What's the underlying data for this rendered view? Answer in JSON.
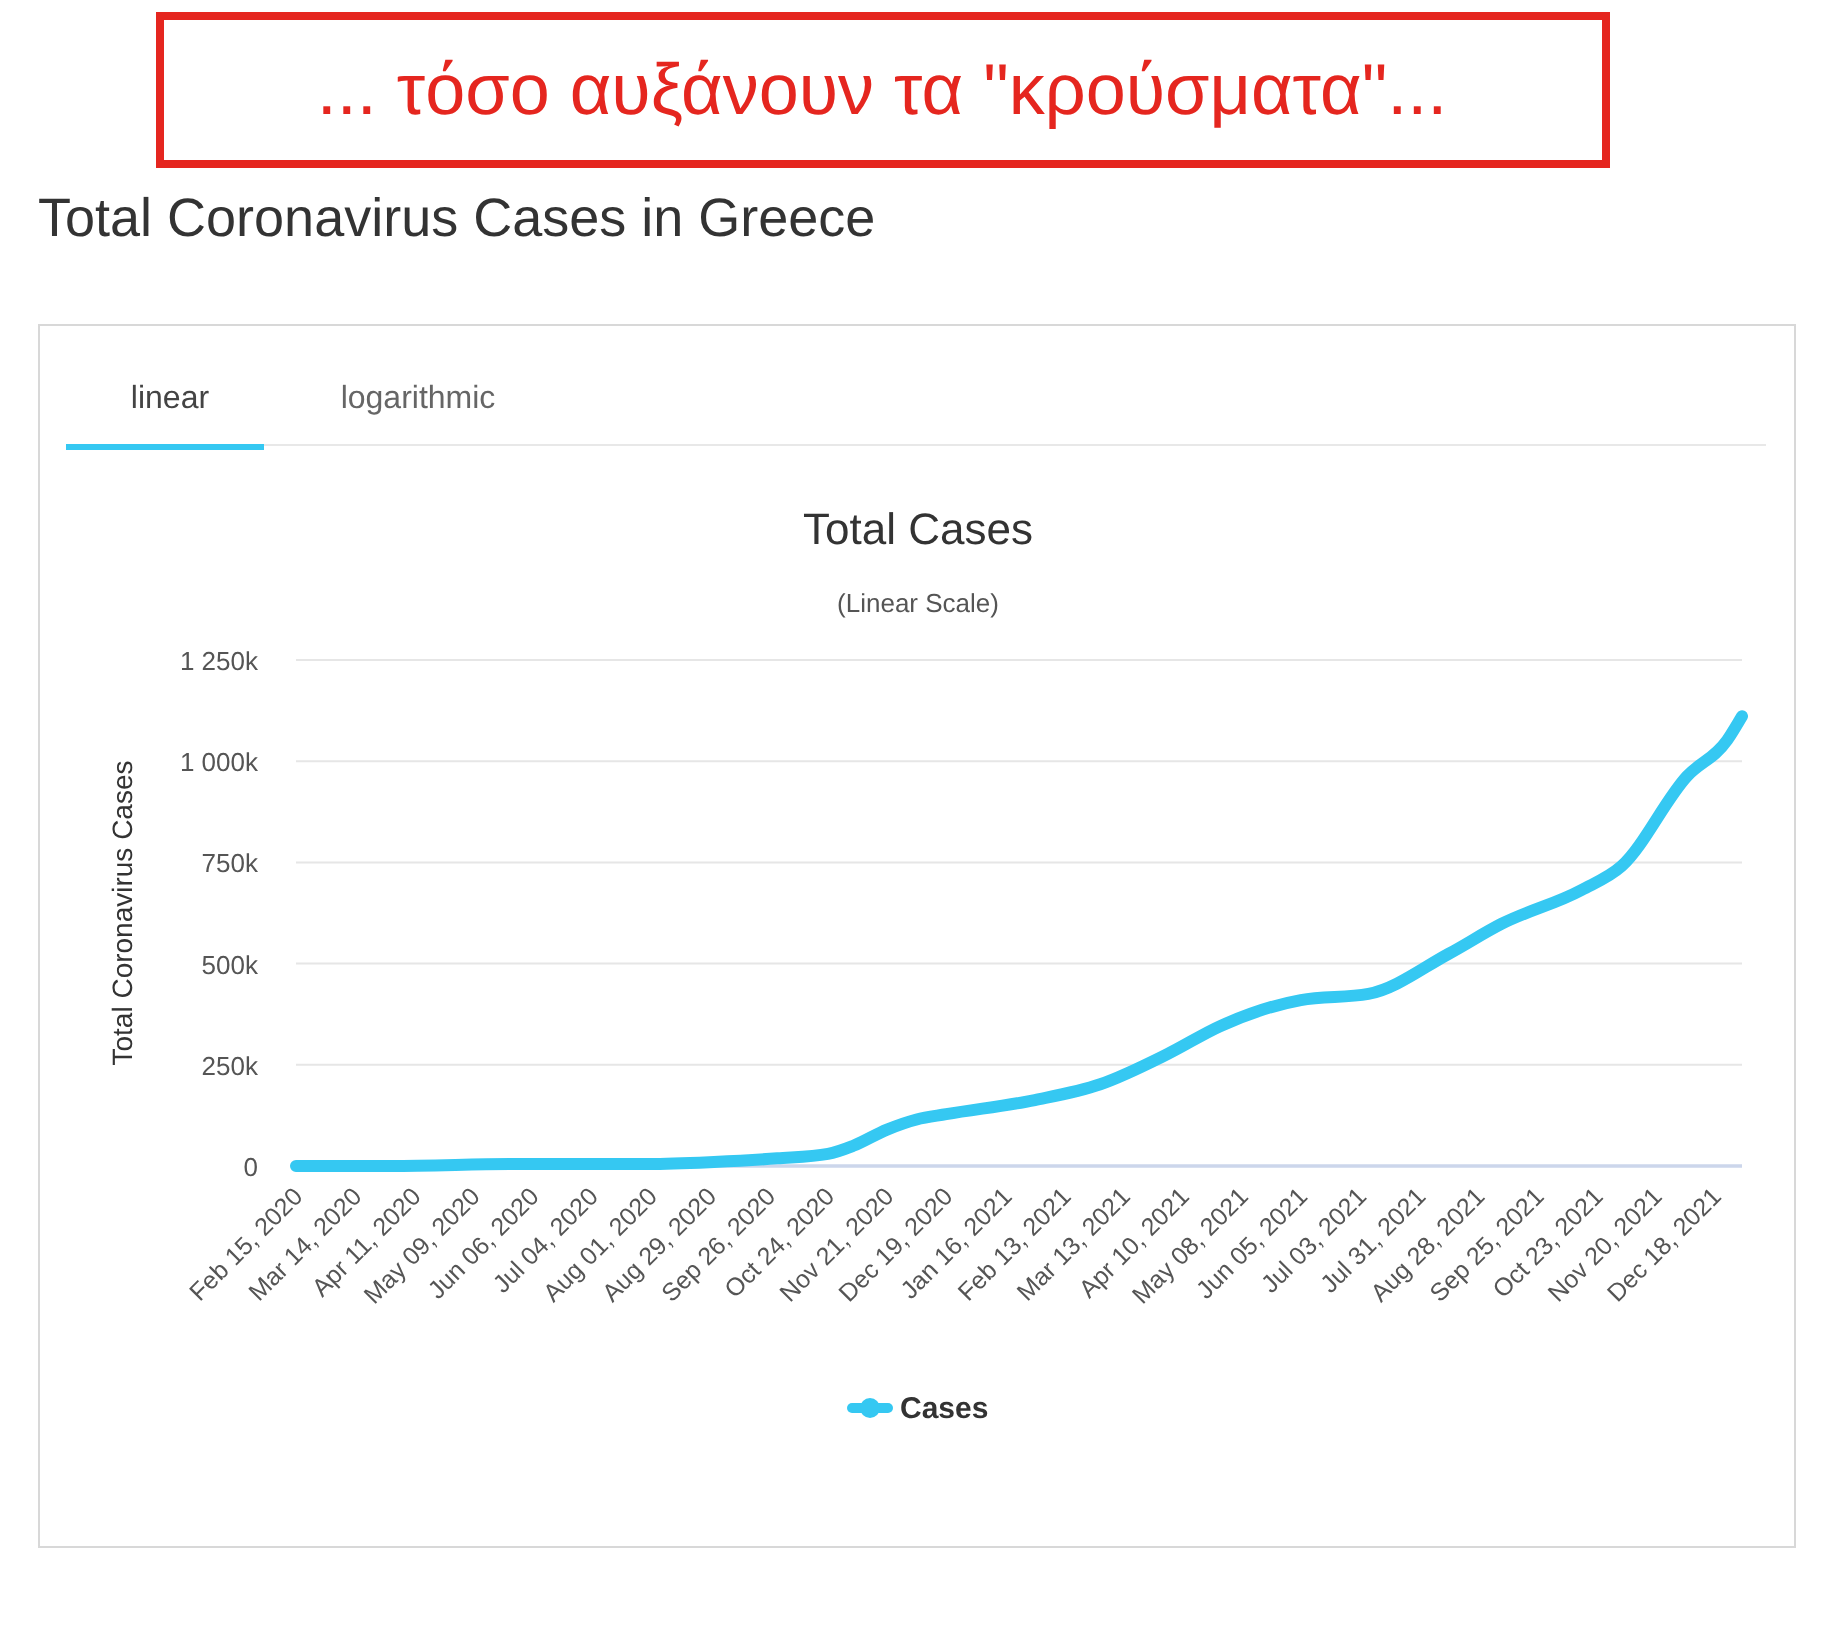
{
  "chart_data": {
    "type": "line",
    "title": "Total Cases",
    "subtitle": "(Linear Scale)",
    "ylabel": "Total Coronavirus Cases",
    "annotations": [
      "... τόσο αυξάνουν τα \"κρούσματα\"...",
      "Total Coronavirus Cases in Greece",
      "linear",
      "logarithmic"
    ],
    "series": [
      {
        "name": "Cases",
        "color": "#35c8f2",
        "x": [
          "2020-02-15",
          "2020-03-31",
          "2020-05-31",
          "2020-07-31",
          "2020-08-31",
          "2020-09-30",
          "2020-10-24",
          "2020-11-05",
          "2020-11-21",
          "2020-12-05",
          "2020-12-19",
          "2021-01-30",
          "2021-03-02",
          "2021-04-03",
          "2021-04-28",
          "2021-06-05",
          "2021-07-07",
          "2021-08-14",
          "2021-09-08",
          "2021-10-16",
          "2021-11-04",
          "2021-12-05",
          "2021-12-24",
          "2021-12-31"
        ],
        "values": [
          0,
          0,
          5000,
          5000,
          10000,
          19000,
          30000,
          50000,
          90000,
          115000,
          128000,
          163000,
          202000,
          277000,
          346000,
          410000,
          425000,
          524000,
          598000,
          682000,
          741000,
          963000,
          1052000,
          1111000
        ]
      }
    ],
    "xlim": [
      "2020-02-15",
      "2021-12-31"
    ],
    "xticks": [
      {
        "value": "2020-02-15",
        "label": "Feb 15, 2020"
      },
      {
        "value": "2020-03-14",
        "label": "Mar 14, 2020"
      },
      {
        "value": "2020-04-11",
        "label": "Apr 11, 2020"
      },
      {
        "value": "2020-05-09",
        "label": "May 09, 2020"
      },
      {
        "value": "2020-06-06",
        "label": "Jun 06, 2020"
      },
      {
        "value": "2020-07-04",
        "label": "Jul 04, 2020"
      },
      {
        "value": "2020-08-01",
        "label": "Aug 01, 2020"
      },
      {
        "value": "2020-08-29",
        "label": "Aug 29, 2020"
      },
      {
        "value": "2020-09-26",
        "label": "Sep 26, 2020"
      },
      {
        "value": "2020-10-24",
        "label": "Oct 24, 2020"
      },
      {
        "value": "2020-11-21",
        "label": "Nov 21, 2020"
      },
      {
        "value": "2020-12-19",
        "label": "Dec 19, 2020"
      },
      {
        "value": "2021-01-16",
        "label": "Jan 16, 2021"
      },
      {
        "value": "2021-02-13",
        "label": "Feb 13, 2021"
      },
      {
        "value": "2021-03-13",
        "label": "Mar 13, 2021"
      },
      {
        "value": "2021-04-10",
        "label": "Apr 10, 2021"
      },
      {
        "value": "2021-05-08",
        "label": "May 08, 2021"
      },
      {
        "value": "2021-06-05",
        "label": "Jun 05, 2021"
      },
      {
        "value": "2021-07-03",
        "label": "Jul 03, 2021"
      },
      {
        "value": "2021-07-31",
        "label": "Jul 31, 2021"
      },
      {
        "value": "2021-08-28",
        "label": "Aug 28, 2021"
      },
      {
        "value": "2021-09-25",
        "label": "Sep 25, 2021"
      },
      {
        "value": "2021-10-23",
        "label": "Oct 23, 2021"
      },
      {
        "value": "2021-11-20",
        "label": "Nov 20, 2021"
      },
      {
        "value": "2021-12-18",
        "label": "Dec 18, 2021"
      }
    ],
    "ylim": [
      0,
      1250000
    ],
    "yticks": [
      0,
      {
        "value": 250000,
        "label": "250k"
      },
      {
        "value": 500000,
        "label": "500k"
      },
      {
        "value": 750000,
        "label": "750k"
      },
      {
        "value": 1000000,
        "label": "1 000k"
      },
      {
        "value": 1250000,
        "label": "1 250k"
      }
    ],
    "grid": "y",
    "legend": "bottom"
  }
}
